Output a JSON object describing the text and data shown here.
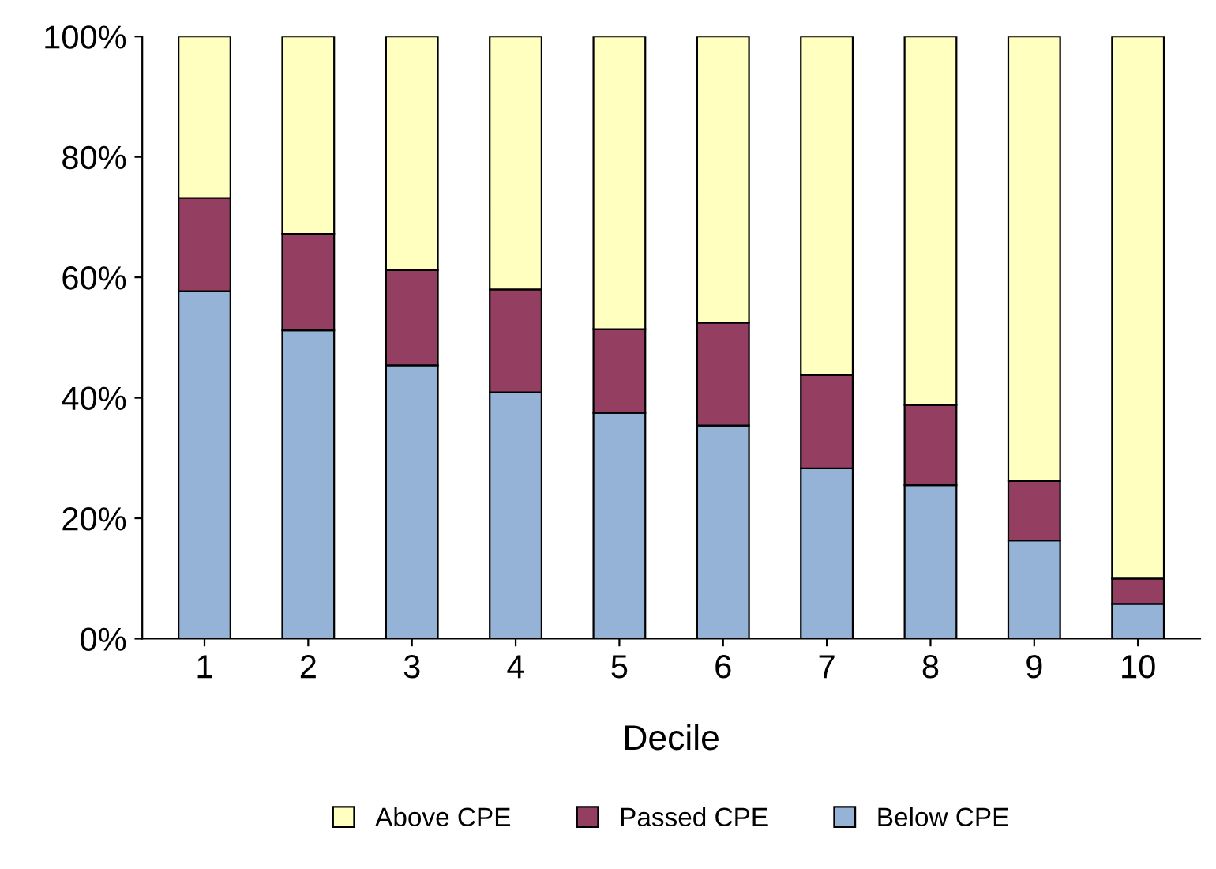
{
  "chart_data": {
    "type": "bar",
    "stacked": true,
    "xlabel": "Decile",
    "categories": [
      "1",
      "2",
      "3",
      "4",
      "5",
      "6",
      "7",
      "8",
      "9",
      "10"
    ],
    "series": [
      {
        "name": "Below CPE",
        "color": "#95b3d7",
        "values": [
          57.7,
          51.2,
          45.4,
          40.9,
          37.5,
          35.4,
          28.3,
          25.5,
          16.3,
          5.8
        ]
      },
      {
        "name": "Passed CPE",
        "color": "#943f62",
        "values": [
          15.5,
          16.0,
          15.8,
          17.1,
          13.9,
          17.1,
          15.5,
          13.3,
          9.9,
          4.2
        ]
      },
      {
        "name": "Above CPE",
        "color": "#ffffc0",
        "values": [
          26.8,
          32.8,
          38.8,
          42.0,
          48.6,
          47.5,
          56.2,
          61.2,
          73.8,
          90.0
        ]
      }
    ],
    "ylim": [
      0,
      100
    ],
    "yticks": [
      {
        "value": 0,
        "label": "0%"
      },
      {
        "value": 20,
        "label": "20%"
      },
      {
        "value": 40,
        "label": "40%"
      },
      {
        "value": 60,
        "label": "60%"
      },
      {
        "value": 80,
        "label": "80%"
      },
      {
        "value": 100,
        "label": "100%"
      }
    ],
    "grid": false,
    "legend": "bottom"
  }
}
